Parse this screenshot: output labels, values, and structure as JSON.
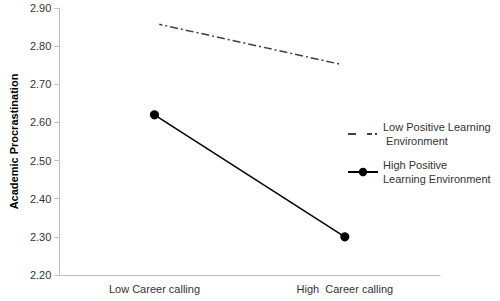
{
  "chart_data": {
    "type": "line",
    "y_label": "Academic Procrastination",
    "categories": [
      "Low Career calling",
      "High  Career calling"
    ],
    "series": [
      {
        "name": "Low Positive Learning Environment",
        "color": "#404040",
        "values": [
          2.86,
          2.75
        ],
        "marker": "circle-open",
        "line_style": "dashdot"
      },
      {
        "name": "High Positive Learning Environment",
        "color": "#000000",
        "values": [
          2.62,
          2.3
        ],
        "marker": "circle",
        "line_style": "solid"
      }
    ],
    "ylim": [
      2.2,
      2.9
    ],
    "yticks": [
      {
        "value": 2.2,
        "label": "2.20"
      },
      {
        "value": 2.3,
        "label": "2.30"
      },
      {
        "value": 2.4,
        "label": "2.40"
      },
      {
        "value": 2.5,
        "label": "2.50"
      },
      {
        "value": 2.6,
        "label": "2.60"
      },
      {
        "value": 2.7,
        "label": "2.70"
      },
      {
        "value": 2.8,
        "label": "2.80"
      },
      {
        "value": 2.9,
        "label": "2.90"
      }
    ],
    "grid": false,
    "legend": "right"
  }
}
